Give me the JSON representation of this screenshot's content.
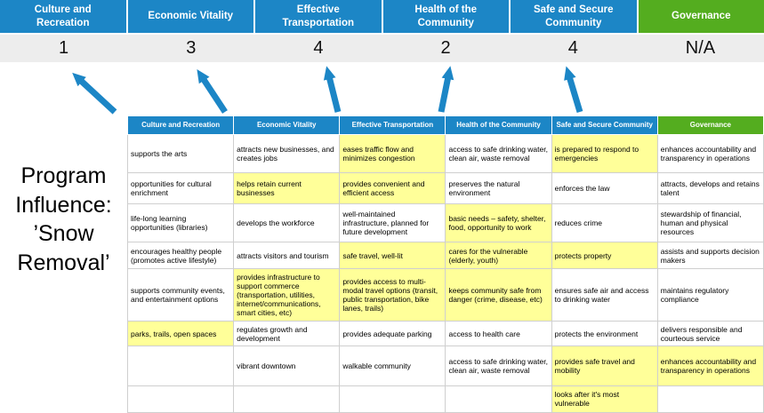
{
  "colors": {
    "pillar_blue": "#1c86c6",
    "pillar_green": "#54ad1f",
    "highlight_yellow": "#ffff99",
    "score_band_bg": "#ededed",
    "arrow_blue": "#1c86c6"
  },
  "program_title": {
    "line1": "Program",
    "line2": "Influence:",
    "line3": "’Snow",
    "line4": "Removal’"
  },
  "scoreboard": {
    "columns": [
      {
        "label": "Culture and Recreation",
        "score": "1",
        "color": "blue"
      },
      {
        "label": "Economic Vitality",
        "score": "3",
        "color": "blue"
      },
      {
        "label": "Effective Transportation",
        "score": "4",
        "color": "blue"
      },
      {
        "label": "Health of the Community",
        "score": "2",
        "color": "blue"
      },
      {
        "label": "Safe and Secure Community",
        "score": "4",
        "color": "blue"
      },
      {
        "label": "Governance",
        "score": "N/A",
        "color": "green"
      }
    ]
  },
  "matrix": {
    "headers": [
      {
        "label": "Culture and Recreation",
        "color": "blue"
      },
      {
        "label": "Economic Vitality",
        "color": "blue"
      },
      {
        "label": "Effective Transportation",
        "color": "blue"
      },
      {
        "label": "Health of the Community",
        "color": "blue"
      },
      {
        "label": "Safe and Secure Community",
        "color": "blue"
      },
      {
        "label": "Governance",
        "color": "green"
      }
    ],
    "rows": [
      [
        {
          "text": "supports the arts",
          "highlight": false
        },
        {
          "text": "attracts new businesses, and creates jobs",
          "highlight": false
        },
        {
          "text": "eases traffic flow and minimizes congestion",
          "highlight": true
        },
        {
          "text": "access to safe drinking water, clean air, waste removal",
          "highlight": false
        },
        {
          "text": "is prepared to respond to emergencies",
          "highlight": true
        },
        {
          "text": "enhances accountability and transparency in operations",
          "highlight": false
        }
      ],
      [
        {
          "text": "opportunities for cultural enrichment",
          "highlight": false
        },
        {
          "text": "helps retain current businesses",
          "highlight": true
        },
        {
          "text": "provides convenient and efficient access",
          "highlight": true
        },
        {
          "text": "preserves the natural environment",
          "highlight": false
        },
        {
          "text": "enforces the law",
          "highlight": false
        },
        {
          "text": "attracts, develops and retains talent",
          "highlight": false
        }
      ],
      [
        {
          "text": "life-long learning opportunities (libraries)",
          "highlight": false
        },
        {
          "text": "develops the workforce",
          "highlight": false
        },
        {
          "text": "well-maintained infrastructure, planned for future development",
          "highlight": false
        },
        {
          "text": "basic needs – safety, shelter, food, opportunity to work",
          "highlight": true
        },
        {
          "text": "reduces crime",
          "highlight": false
        },
        {
          "text": "stewardship of financial, human and physical resources",
          "highlight": false
        }
      ],
      [
        {
          "text": "encourages healthy people (promotes active lifestyle)",
          "highlight": false
        },
        {
          "text": "attracts visitors and tourism",
          "highlight": false
        },
        {
          "text": "safe travel, well-lit",
          "highlight": true
        },
        {
          "text": "cares for the vulnerable (elderly, youth)",
          "highlight": true
        },
        {
          "text": "protects property",
          "highlight": true
        },
        {
          "text": "assists and supports decision makers",
          "highlight": false
        }
      ],
      [
        {
          "text": "supports community events, and entertainment options",
          "highlight": false
        },
        {
          "text": "provides infrastructure to support commerce (transportation, utilities, internet/communications, smart cities, etc)",
          "highlight": true
        },
        {
          "text": "provides access to multi-modal travel options (transit, public transportation, bike lanes, trails)",
          "highlight": true
        },
        {
          "text": "keeps community safe from danger (crime, disease, etc)",
          "highlight": true
        },
        {
          "text": "ensures safe air and access to drinking water",
          "highlight": false
        },
        {
          "text": "maintains regulatory compliance",
          "highlight": false
        }
      ],
      [
        {
          "text": "parks, trails, open spaces",
          "highlight": true
        },
        {
          "text": "regulates growth and development",
          "highlight": false
        },
        {
          "text": "provides adequate parking",
          "highlight": false
        },
        {
          "text": "access to health care",
          "highlight": false
        },
        {
          "text": "protects the environment",
          "highlight": false
        },
        {
          "text": "delivers responsible and courteous service",
          "highlight": false
        }
      ],
      [
        {
          "text": "",
          "highlight": false
        },
        {
          "text": "vibrant downtown",
          "highlight": false
        },
        {
          "text": "walkable community",
          "highlight": false
        },
        {
          "text": "access to safe drinking water, clean air, waste removal",
          "highlight": false
        },
        {
          "text": "provides safe travel and mobility",
          "highlight": true
        },
        {
          "text": "enhances accountability and transparency in operations",
          "highlight": true
        }
      ],
      [
        {
          "text": "",
          "highlight": false
        },
        {
          "text": "",
          "highlight": false
        },
        {
          "text": "",
          "highlight": false
        },
        {
          "text": "",
          "highlight": false
        },
        {
          "text": "looks after it's most vulnerable",
          "highlight": true
        },
        {
          "text": "",
          "highlight": false
        }
      ]
    ]
  }
}
